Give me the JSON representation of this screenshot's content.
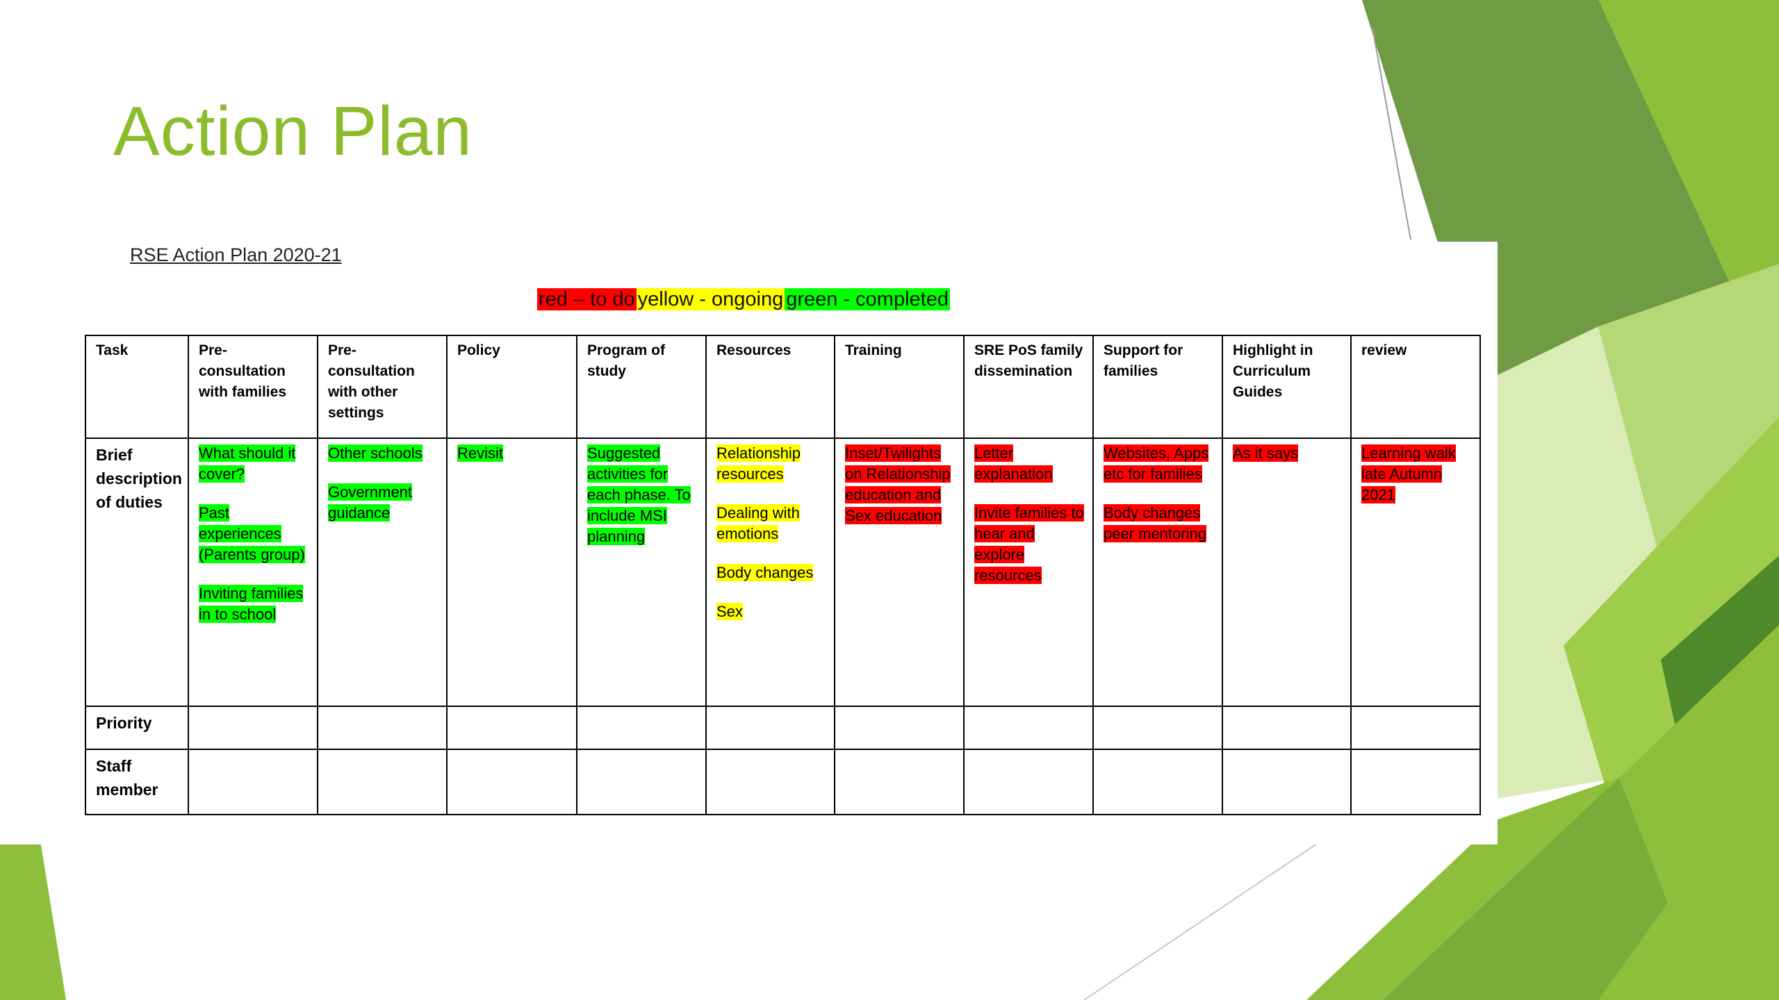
{
  "slide": {
    "title": "Action Plan",
    "accent": "#8cbc2c"
  },
  "doc": {
    "title": "RSE Action Plan 2020-21",
    "legend": [
      {
        "text": "red – to do",
        "color": "#ff0000"
      },
      {
        "text": "yellow - ongoing",
        "color": "#ffff00"
      },
      {
        "text": "green - completed",
        "color": "#00ff00"
      }
    ]
  },
  "table": {
    "headers": [
      "Task",
      "Pre-consultation with families",
      "Pre-consultation with other settings",
      "Policy",
      "Program of study",
      "Resources",
      "Training",
      "SRE PoS family dissemination",
      "Support for families",
      "Highlight in Curriculum Guides",
      "review"
    ],
    "row_labels": {
      "duties": "Brief description of duties",
      "priority": "Priority",
      "staff": "Staff member"
    },
    "duties": [
      [
        {
          "text": "What should it cover?",
          "status": "green"
        },
        {
          "text": "Past experiences (Parents group)",
          "status": "green"
        },
        {
          "text": "Inviting families in to school",
          "status": "green"
        }
      ],
      [
        {
          "text": "Other schools",
          "status": "green"
        },
        {
          "text": "Government guidance",
          "status": "green"
        }
      ],
      [
        {
          "text": "Revisit",
          "status": "green"
        }
      ],
      [
        {
          "text": "Suggested activities for each phase. To include MSI planning",
          "status": "green"
        }
      ],
      [
        {
          "text": "Relationship resources",
          "status": "yellow"
        },
        {
          "text": "Dealing with emotions",
          "status": "yellow"
        },
        {
          "text": "Body changes",
          "status": "yellow"
        },
        {
          "text": "Sex",
          "status": "yellow"
        }
      ],
      [
        {
          "text": "Inset/Twilights on Relationship education and Sex education",
          "status": "red"
        }
      ],
      [
        {
          "text": "Letter explanation",
          "status": "red"
        },
        {
          "text": "Invite families to hear and explore resources",
          "status": "red"
        }
      ],
      [
        {
          "text": "Websites, Apps etc for families",
          "status": "red"
        },
        {
          "text": "Body changes peer mentoring",
          "status": "red"
        }
      ],
      [
        {
          "text": "As it says",
          "status": "red"
        }
      ],
      [
        {
          "text": "Learning walk late Autumn 2021",
          "status": "red"
        }
      ]
    ],
    "status_colors": {
      "red": "#ff0000",
      "yellow": "#ffff00",
      "green": "#00ff00"
    }
  }
}
